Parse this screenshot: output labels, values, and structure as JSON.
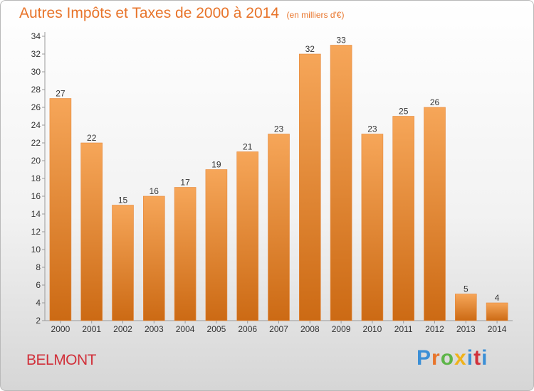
{
  "header": {
    "title": "Autres Impôts et Taxes de 2000 à 2014",
    "subtitle": "(en milliers d'€)"
  },
  "footer": {
    "city": "BELMONT",
    "brand": "Proxiti"
  },
  "colors": {
    "bar_top": "#f6a659",
    "bar_bottom": "#cc6a14",
    "title": "#e8742a",
    "city": "#d1303a"
  },
  "chart_data": {
    "type": "bar",
    "title": "Autres Impôts et Taxes de 2000 à 2014",
    "subtitle": "(en milliers d'€)",
    "categories": [
      "2000",
      "2001",
      "2002",
      "2003",
      "2004",
      "2005",
      "2006",
      "2007",
      "2008",
      "2009",
      "2010",
      "2011",
      "2012",
      "2013",
      "2014"
    ],
    "values": [
      27,
      22,
      15,
      16,
      17,
      19,
      21,
      23,
      32,
      33,
      23,
      25,
      26,
      5,
      4
    ],
    "ylim": [
      2,
      34
    ],
    "yticks": [
      2,
      4,
      6,
      8,
      10,
      12,
      14,
      16,
      18,
      20,
      22,
      24,
      26,
      28,
      30,
      32,
      34
    ],
    "grid": false,
    "legend": "none",
    "data_labels": true
  }
}
